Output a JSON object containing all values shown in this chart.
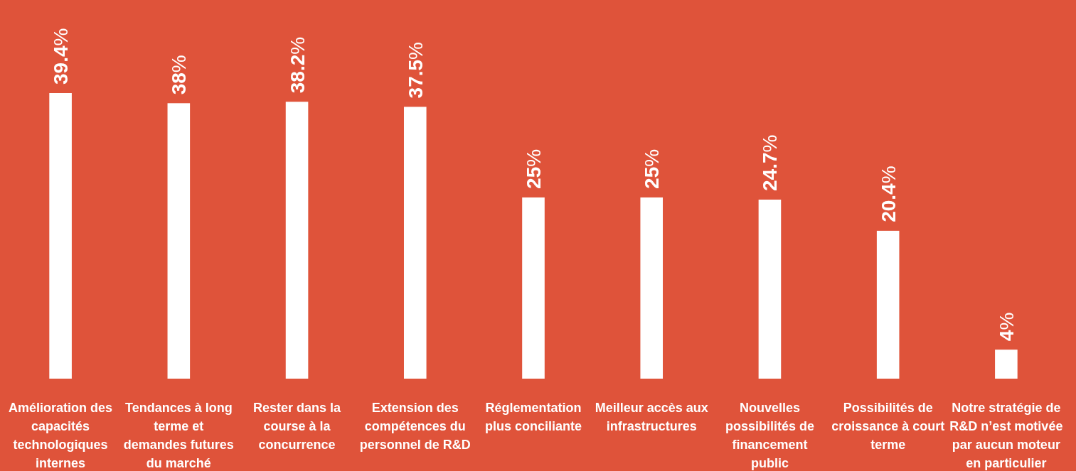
{
  "chart_data": {
    "type": "bar",
    "categories": [
      "Amélioration des capacités technologiques internes",
      "Tendances à long terme et demandes futures du marché",
      "Rester dans la course à la concurrence",
      "Extension des compétences du personnel de R&D",
      "Réglementation plus conciliante",
      "Meilleur accès aux infrastructures",
      "Nouvelles possibilités de financement public",
      "Possibilités de croissance à court terme",
      "Notre stratégie de R&D n’est motivée par aucun moteur en particulier"
    ],
    "values": [
      39.4,
      38,
      38.2,
      37.5,
      25,
      25,
      24.7,
      20.4,
      4
    ],
    "value_labels": [
      "39.4%",
      "38%",
      "38.2%",
      "37.5%",
      "25%",
      "25%",
      "24.7%",
      "20.4%",
      "4%"
    ],
    "color": "#ffffff"
  }
}
